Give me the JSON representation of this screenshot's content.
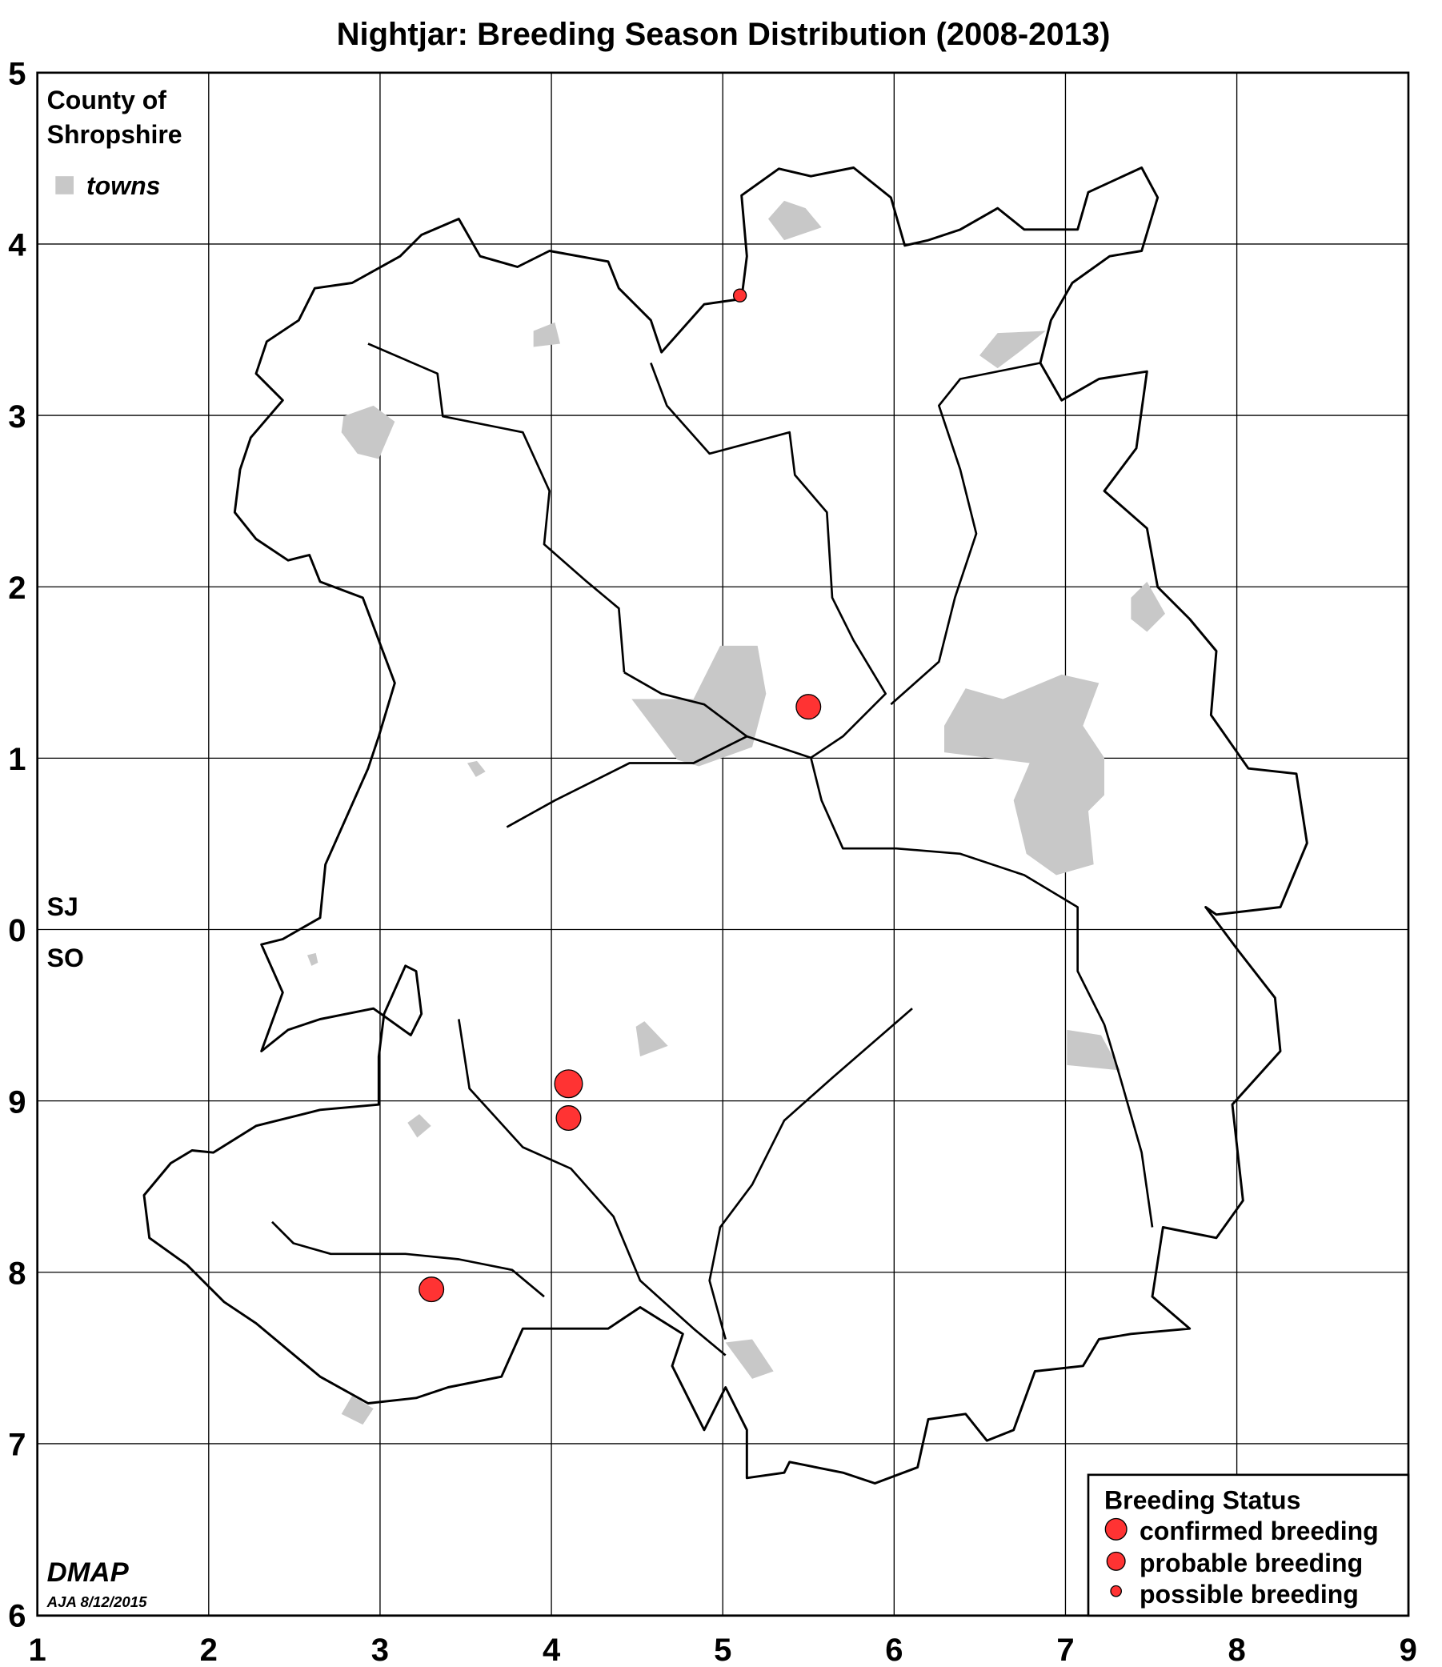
{
  "title": "Nightjar: Breeding Season Distribution (2008-2013)",
  "county_label": [
    "County of",
    "Shropshire"
  ],
  "towns_label": "towns",
  "grid_squares": {
    "north": "SJ",
    "south": "SO"
  },
  "x_ticks": [
    "1",
    "2",
    "3",
    "4",
    "5",
    "6",
    "7",
    "8",
    "9"
  ],
  "y_ticks": [
    "5",
    "4",
    "3",
    "2",
    "1",
    "0",
    "9",
    "8",
    "7",
    "6"
  ],
  "legend": {
    "title": "Breeding Status",
    "items": [
      {
        "label": "confirmed breeding",
        "status": "confirmed"
      },
      {
        "label": "probable breeding",
        "status": "probable"
      },
      {
        "label": "possible breeding",
        "status": "possible"
      }
    ]
  },
  "records": [
    {
      "square": "SJ",
      "easting": 5.1,
      "northing": 3.7,
      "status": "possible"
    },
    {
      "square": "SJ",
      "easting": 5.5,
      "northing": 1.3,
      "status": "probable"
    },
    {
      "square": "SO",
      "easting": 4.1,
      "northing": 9.1,
      "status": "confirmed"
    },
    {
      "square": "SO",
      "easting": 4.1,
      "northing": 8.9,
      "status": "probable"
    },
    {
      "square": "SO",
      "easting": 3.3,
      "northing": 7.9,
      "status": "probable"
    }
  ],
  "credit": {
    "brand": "DMAP",
    "author_date": "AJA 8/12/2015"
  },
  "colors": {
    "record": "#ff3333",
    "town": "#c8c8c8"
  }
}
